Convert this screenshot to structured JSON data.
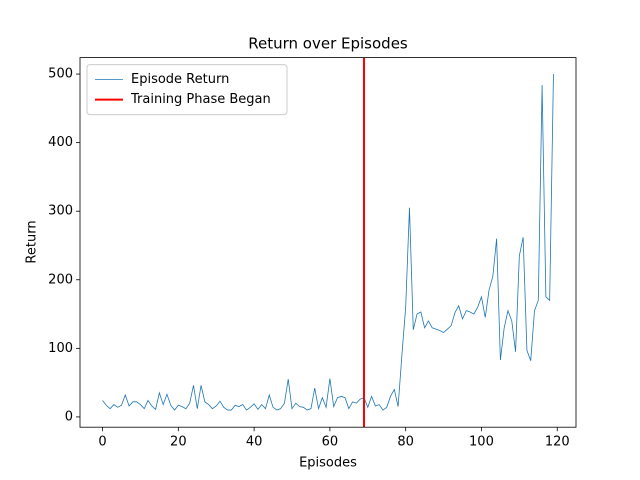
{
  "chart_data": {
    "type": "line",
    "title": "Return over Episodes",
    "x_label": "Episodes",
    "y_label": "Return",
    "x": [
      0,
      1,
      2,
      3,
      4,
      5,
      6,
      7,
      8,
      9,
      10,
      11,
      12,
      13,
      14,
      15,
      16,
      17,
      18,
      19,
      20,
      21,
      22,
      23,
      24,
      25,
      26,
      27,
      28,
      29,
      30,
      31,
      32,
      33,
      34,
      35,
      36,
      37,
      38,
      39,
      40,
      41,
      42,
      43,
      44,
      45,
      46,
      47,
      48,
      49,
      50,
      51,
      52,
      53,
      54,
      55,
      56,
      57,
      58,
      59,
      60,
      61,
      62,
      63,
      64,
      65,
      66,
      67,
      68,
      69,
      70,
      71,
      72,
      73,
      74,
      75,
      76,
      77,
      78,
      79,
      80,
      81,
      82,
      83,
      84,
      85,
      86,
      87,
      88,
      89,
      90,
      91,
      92,
      93,
      94,
      95,
      96,
      97,
      98,
      99,
      100,
      101,
      102,
      103,
      104,
      105,
      106,
      107,
      108,
      109,
      110,
      111,
      112,
      113,
      114,
      115,
      116,
      117,
      118,
      119
    ],
    "series": [
      {
        "name": "Episode Return",
        "color": "#1f77b4",
        "values": [
          24,
          17,
          12,
          18,
          14,
          17,
          32,
          16,
          22,
          22,
          18,
          12,
          24,
          16,
          11,
          35,
          18,
          33,
          17,
          10,
          17,
          15,
          12,
          20,
          46,
          12,
          46,
          22,
          18,
          12,
          16,
          23,
          14,
          10,
          10,
          17,
          15,
          18,
          10,
          14,
          19,
          11,
          18,
          12,
          32,
          14,
          10,
          12,
          20,
          55,
          12,
          20,
          15,
          14,
          10,
          12,
          42,
          12,
          28,
          14,
          56,
          15,
          28,
          30,
          28,
          12,
          22,
          20,
          26,
          28,
          14,
          30,
          16,
          18,
          10,
          14,
          30,
          40,
          15,
          90,
          160,
          305,
          127,
          150,
          153,
          130,
          140,
          130,
          128,
          126,
          123,
          128,
          133,
          152,
          162,
          143,
          155,
          153,
          150,
          160,
          175,
          145,
          185,
          205,
          260,
          83,
          130,
          155,
          140,
          95,
          235,
          262,
          97,
          82,
          155,
          170,
          484,
          175,
          170,
          500
        ]
      }
    ],
    "vlines": [
      {
        "name": "Training Phase Began",
        "color": "#ff0000",
        "x": 69
      }
    ],
    "xlim": [
      -5.95,
      124.95
    ],
    "ylim": [
      -15,
      524
    ],
    "xticks": [
      0,
      20,
      40,
      60,
      80,
      100,
      120
    ],
    "yticks": [
      0,
      100,
      200,
      300,
      400,
      500
    ],
    "legend": "upper left"
  }
}
